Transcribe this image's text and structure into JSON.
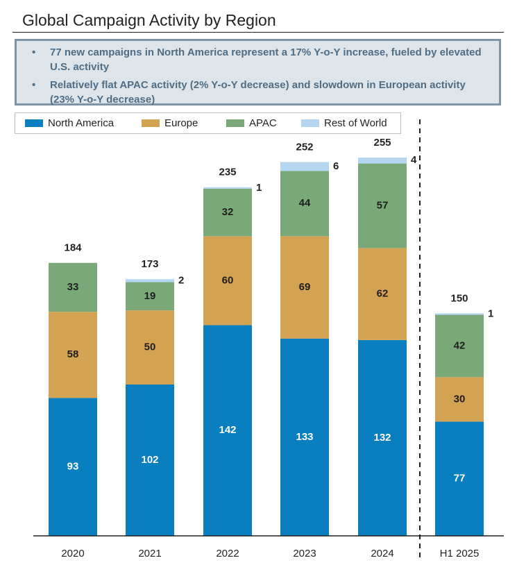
{
  "title": "Global Campaign Activity by Region",
  "callout": {
    "bullets": [
      "77 new campaigns in North America represent a 17% Y-o-Y increase, fueled by elevated U.S. activity",
      "Relatively flat APAC activity (2% Y-o-Y decrease) and slowdown in European activity (23% Y-o-Y decrease)"
    ],
    "bullet_glyph": "•"
  },
  "colors": {
    "north_america": "#0a7fbf",
    "europe": "#d4a253",
    "apac": "#7ba878",
    "rest_of_world": "#b4d6f1"
  },
  "chart_data": {
    "type": "bar",
    "stacked": true,
    "categories": [
      "2020",
      "2021",
      "2022",
      "2023",
      "2024",
      "H1 2025"
    ],
    "series": [
      {
        "name": "North America",
        "color": "#0a7fbf",
        "values": [
          93,
          102,
          142,
          133,
          132,
          77
        ]
      },
      {
        "name": "Europe",
        "color": "#d4a253",
        "values": [
          58,
          50,
          60,
          69,
          62,
          30
        ]
      },
      {
        "name": "APAC",
        "color": "#7ba878",
        "values": [
          33,
          19,
          32,
          44,
          57,
          42
        ]
      },
      {
        "name": "Rest of World",
        "color": "#b4d6f1",
        "values": [
          0,
          2,
          1,
          6,
          4,
          1
        ]
      }
    ],
    "totals": [
      184,
      173,
      235,
      252,
      255,
      150
    ],
    "xlabel": "",
    "ylabel": "",
    "ylim": [
      0,
      255
    ],
    "legend": "top",
    "grid": false,
    "divider_before": "H1 2025"
  }
}
